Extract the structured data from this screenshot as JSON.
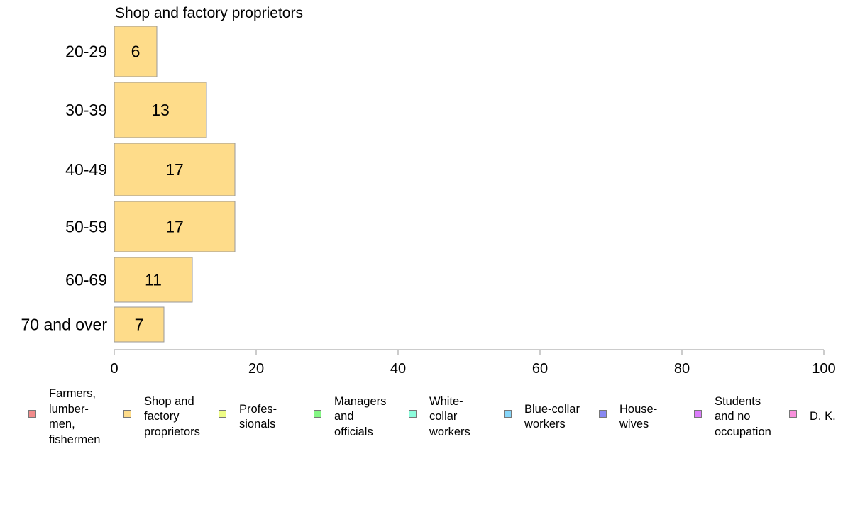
{
  "chart_data": {
    "type": "bar",
    "orientation": "horizontal",
    "title": "Shop and factory proprietors",
    "categories": [
      "20-29",
      "30-39",
      "40-49",
      "50-59",
      "60-69",
      "70 and over"
    ],
    "series": [
      {
        "name": "Shop and factory proprietors",
        "values": [
          6,
          13,
          17,
          17,
          11,
          7
        ],
        "color": "#fedc8a"
      }
    ],
    "xlim": [
      0,
      100
    ],
    "xticks": [
      "0",
      "20",
      "40",
      "60",
      "80",
      "100"
    ],
    "bar_border_color": "#999999",
    "grid": false,
    "legend_position": "bottom",
    "legend": [
      {
        "label": "Farmers,\nlumber-\nmen,\nfishermen",
        "color": "#f28b8b",
        "icon": "swatch"
      },
      {
        "label": "Shop and\nfactory\nproprietors",
        "color": "#fedc8a",
        "icon": "swatch"
      },
      {
        "label": "Profes-\nsionals",
        "color": "#eefc86",
        "icon": "swatch"
      },
      {
        "label": "Managers\nand\nofficials",
        "color": "#84f684",
        "icon": "swatch"
      },
      {
        "label": "White-\ncollar\nworkers",
        "color": "#8cfcdc",
        "icon": "swatch"
      },
      {
        "label": "Blue-collar\nworkers",
        "color": "#86d6fa",
        "icon": "swatch"
      },
      {
        "label": "House-\nwives",
        "color": "#8888f2",
        "icon": "swatch"
      },
      {
        "label": "Students\nand no\noccupation",
        "color": "#dc7cfc",
        "icon": "swatch"
      },
      {
        "label": "D. K.",
        "color": "#f890dc",
        "icon": "swatch"
      }
    ]
  }
}
